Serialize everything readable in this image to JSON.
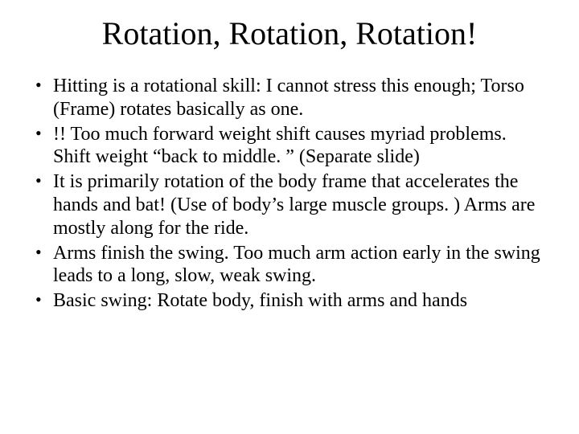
{
  "slide": {
    "title": "Rotation, Rotation, Rotation!",
    "bullets": [
      "Hitting is a rotational skill:  I cannot stress this enough; Torso (Frame) rotates basically as one.",
      "!! Too much forward weight shift causes myriad problems.  Shift weight “back to middle. ” (Separate slide)",
      "It is primarily rotation of the body frame that accelerates the hands and bat! (Use of body’s large muscle groups. )  Arms are mostly along for the ride.",
      "Arms finish the swing.  Too much arm action early in the swing leads to a long, slow, weak swing.",
      "Basic swing: Rotate body, finish with arms and hands"
    ],
    "title_fontsize": 40,
    "body_fontsize": 24,
    "background_color": "#ffffff",
    "text_color": "#000000",
    "font_family": "Times New Roman"
  }
}
